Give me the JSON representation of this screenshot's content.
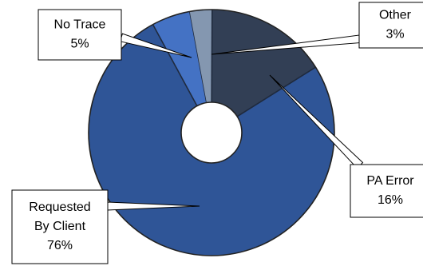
{
  "chart_data": {
    "type": "pie",
    "style": "donut",
    "legend": "none",
    "categories": [
      "Other",
      "PA Error",
      "Requested By Client",
      "No Trace"
    ],
    "values": [
      3,
      16,
      76,
      5
    ],
    "labels": [
      [
        "Other",
        "3%"
      ],
      [
        "PA Error",
        "16%"
      ],
      [
        "Requested",
        "By Client",
        "76%"
      ],
      [
        "No Trace",
        "5%"
      ]
    ],
    "colors": [
      "#8497b0",
      "#323f55",
      "#2f5597",
      "#4472c4"
    ]
  }
}
